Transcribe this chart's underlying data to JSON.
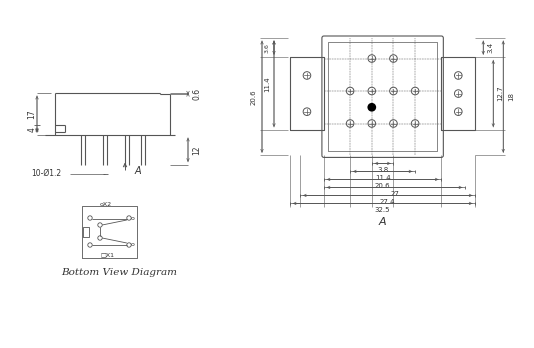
{
  "bg_color": "#ffffff",
  "line_color": "#555555",
  "dim_color": "#555555",
  "text_color": "#333333",
  "font_size": 5.5,
  "title_font_size": 7.5,
  "labels": {
    "dim_17": "17",
    "dim_4": "4",
    "dim_06": "0.6",
    "dim_12": "12",
    "dim_10phi": "10-Ø1.2",
    "dim_206_left": "20.6",
    "dim_114_left": "11.4",
    "dim_35_left": "3.6",
    "dim_34_right": "3.4",
    "dim_127_right": "12.7",
    "dim_18_right": "18",
    "dim_38_bot": "3.8",
    "dim_114_bot": "11.4",
    "dim_206_bot": "20.6",
    "dim_27_bot": "27",
    "dim_274_bot": "27.4",
    "dim_325_bot": "32.5",
    "label_A_side": "A",
    "label_A_top": "A",
    "bottom_view_text": "Bottom View Diagram"
  }
}
